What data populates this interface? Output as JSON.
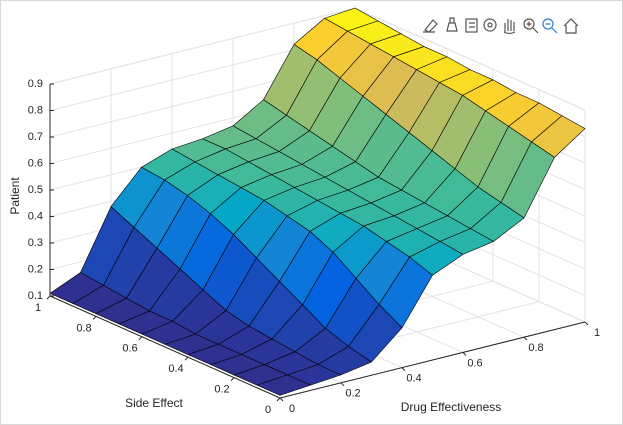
{
  "chart_data": {
    "type": "surface",
    "xlabel": "Drug Effectiveness",
    "ylabel": "Side Effect",
    "zlabel": "Patient",
    "x": [
      0,
      0.1,
      0.2,
      0.3,
      0.4,
      0.5,
      0.6,
      0.7,
      0.8,
      0.9,
      1
    ],
    "y": [
      0,
      0.1,
      0.2,
      0.3,
      0.4,
      0.5,
      0.6,
      0.7,
      0.8,
      0.9,
      1
    ],
    "z": [
      [
        0.11,
        0.12,
        0.13,
        0.15,
        0.25,
        0.42,
        0.47,
        0.49,
        0.55,
        0.75,
        0.83
      ],
      [
        0.11,
        0.12,
        0.13,
        0.17,
        0.3,
        0.45,
        0.48,
        0.5,
        0.57,
        0.77,
        0.84
      ],
      [
        0.11,
        0.12,
        0.14,
        0.2,
        0.36,
        0.47,
        0.49,
        0.51,
        0.59,
        0.79,
        0.85
      ],
      [
        0.11,
        0.12,
        0.15,
        0.25,
        0.42,
        0.49,
        0.5,
        0.52,
        0.62,
        0.81,
        0.85
      ],
      [
        0.11,
        0.12,
        0.16,
        0.3,
        0.46,
        0.5,
        0.51,
        0.53,
        0.65,
        0.83,
        0.86
      ],
      [
        0.11,
        0.12,
        0.18,
        0.35,
        0.48,
        0.51,
        0.52,
        0.54,
        0.68,
        0.84,
        0.86
      ],
      [
        0.11,
        0.13,
        0.22,
        0.4,
        0.5,
        0.52,
        0.53,
        0.56,
        0.71,
        0.85,
        0.87
      ],
      [
        0.11,
        0.13,
        0.26,
        0.44,
        0.51,
        0.53,
        0.54,
        0.58,
        0.74,
        0.86,
        0.87
      ],
      [
        0.11,
        0.14,
        0.3,
        0.47,
        0.52,
        0.54,
        0.55,
        0.6,
        0.77,
        0.87,
        0.88
      ],
      [
        0.11,
        0.15,
        0.34,
        0.49,
        0.53,
        0.55,
        0.56,
        0.62,
        0.8,
        0.88,
        0.89
      ],
      [
        0.11,
        0.16,
        0.38,
        0.5,
        0.54,
        0.55,
        0.57,
        0.64,
        0.82,
        0.89,
        0.9
      ]
    ],
    "xlim": [
      0,
      1
    ],
    "ylim": [
      0,
      1
    ],
    "zlim": [
      0.1,
      0.9
    ],
    "xticks": [
      0,
      0.2,
      0.4,
      0.6,
      0.8,
      1
    ],
    "yticks": [
      0,
      0.2,
      0.4,
      0.6,
      0.8,
      1
    ],
    "zticks": [
      0.1,
      0.2,
      0.3,
      0.4,
      0.5,
      0.6,
      0.7,
      0.8,
      0.9
    ],
    "grid": true,
    "colormap": [
      "#352a87",
      "#0363e1",
      "#1485d4",
      "#06a7c6",
      "#38b99e",
      "#92bf73",
      "#d9ba56",
      "#fcce2e",
      "#f9fb0e"
    ],
    "edge_color": "#000000"
  }
}
